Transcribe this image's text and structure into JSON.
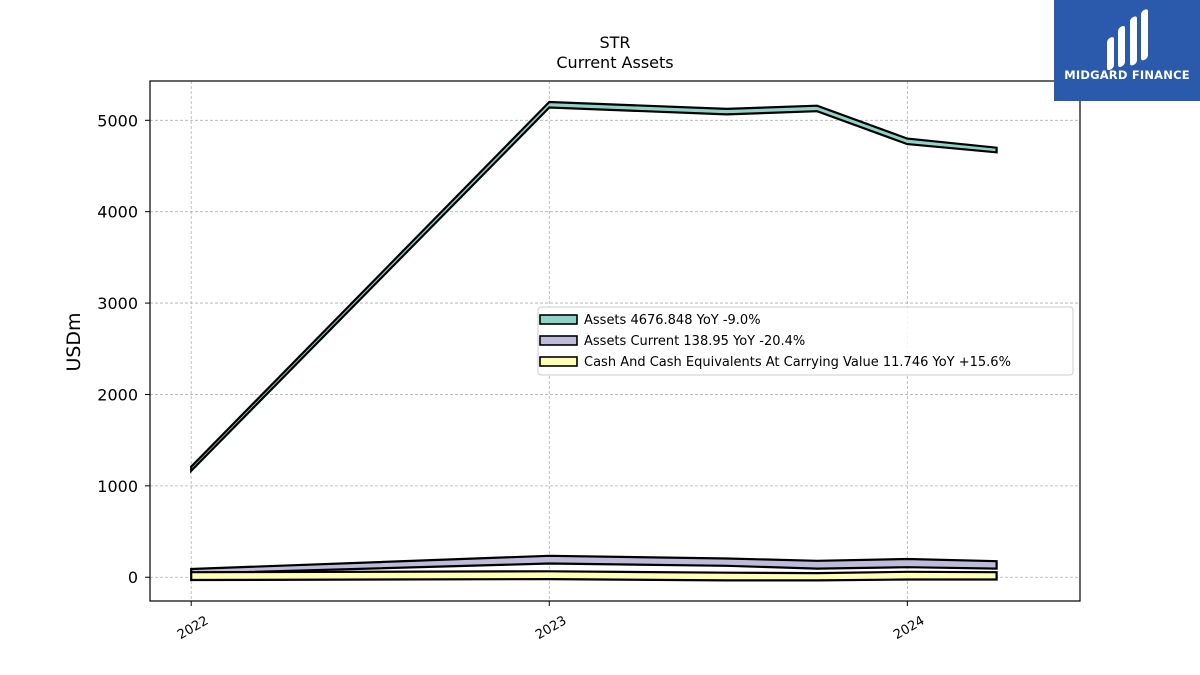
{
  "chart_data": {
    "type": "area",
    "title": "STR",
    "subtitle": "Current  Assets",
    "ylabel": "USDm",
    "xlabel": "",
    "x": [
      "2022-01-01",
      "2023-01-01",
      "2023-07-01",
      "2023-10-01",
      "2024-01-01",
      "2024-04-01"
    ],
    "xlim": [
      "2021-11-20",
      "2024-06-25"
    ],
    "ylim": [
      -260,
      5430
    ],
    "yticks": [
      0,
      1000,
      2000,
      3000,
      4000,
      5000
    ],
    "xticks": [
      {
        "date": "2022-01-01",
        "label": "2022"
      },
      {
        "date": "2023-01-01",
        "label": "2023"
      },
      {
        "date": "2024-01-01",
        "label": "2024"
      }
    ],
    "grid": true,
    "legend_position": "center-right",
    "series": [
      {
        "name": "Assets",
        "legend_label": "Assets  4676.848 YoY -9.0%",
        "color": "#8dd3c7",
        "lower": [
          1165,
          5140,
          5065,
          5100,
          4740,
          4650
        ],
        "upper": [
          1210,
          5200,
          5125,
          5160,
          4800,
          4700
        ]
      },
      {
        "name": "Assets Current",
        "legend_label": "Assets Current  138.95 YoY -20.4%",
        "color": "#bebada",
        "lower": [
          40,
          150,
          125,
          95,
          110,
          95
        ],
        "upper": [
          90,
          235,
          205,
          180,
          200,
          175
        ]
      },
      {
        "name": "Cash And Cash Equivalents At Carrying Value",
        "legend_label": "Cash And Cash Equivalents At Carrying Value  11.746 YoY +15.6%",
        "color": "#ffffb3",
        "lower": [
          -30,
          -20,
          -35,
          -35,
          -25,
          -25
        ],
        "upper": [
          55,
          65,
          50,
          45,
          60,
          55
        ]
      }
    ]
  },
  "logo": {
    "text": "MIDGARD FINANCE"
  }
}
